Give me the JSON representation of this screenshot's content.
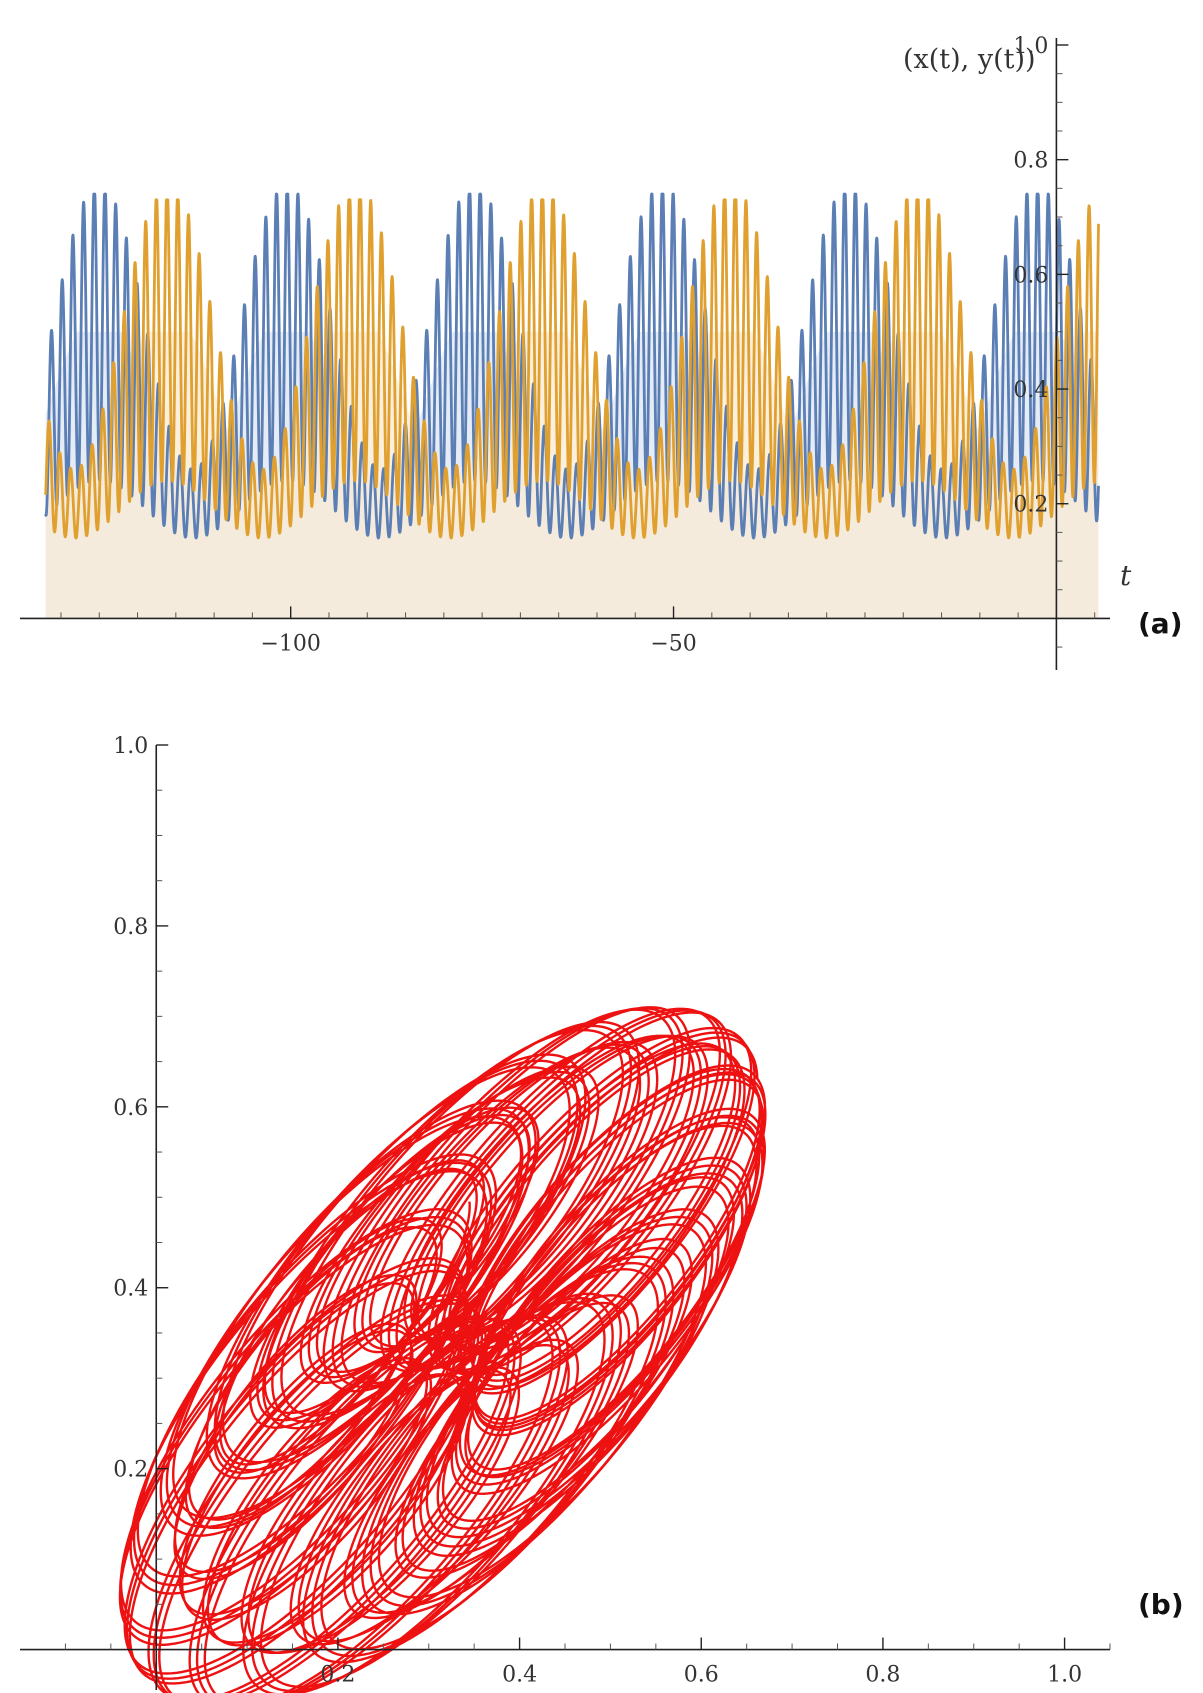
{
  "chart_data": [
    {
      "type": "line",
      "panel_label": "(a)",
      "ylabel": "(x(t), y(t))",
      "xlabel": "t",
      "xlim": [
        -133,
        7
      ],
      "ylim": [
        -0.09,
        1.0
      ],
      "xticks": [
        {
          "value": -100,
          "label": "−100"
        },
        {
          "value": -50,
          "label": "−50"
        }
      ],
      "yticks": [
        {
          "value": 0.2,
          "label": "0.2"
        },
        {
          "value": 0.4,
          "label": "0.4"
        },
        {
          "value": 0.6,
          "label": "0.6"
        },
        {
          "value": 0.8,
          "label": "0.8"
        },
        {
          "value": 1.0,
          "label": "1.0"
        }
      ],
      "filled_to_axis": true,
      "grid": false,
      "series": [
        {
          "color": "#5b7fb5",
          "fill": "#dce5f3",
          "slow_period": 24.5,
          "fast_period": 1.4,
          "peak_t": [
            -125,
            -101,
            -77,
            -52,
            -27,
            -3
          ],
          "mean_range": [
            0.2,
            0.5
          ],
          "oscillation_range": [
            -0.06,
            0.74
          ]
        },
        {
          "color": "#e0a030",
          "fill": "#faebd3",
          "slow_period": 24.5,
          "fast_period": 1.4,
          "peak_t": [
            -116,
            -92,
            -67,
            -43,
            -18,
            6
          ],
          "mean_range": [
            0.2,
            0.5
          ],
          "oscillation_range": [
            -0.05,
            0.73
          ]
        }
      ]
    },
    {
      "type": "line",
      "panel_label": "(b)",
      "xlim": [
        -0.15,
        1.05
      ],
      "ylim": [
        -0.1,
        1.0
      ],
      "xticks": [
        {
          "value": 0.2,
          "label": "0.2"
        },
        {
          "value": 0.4,
          "label": "0.4"
        },
        {
          "value": 0.6,
          "label": "0.6"
        },
        {
          "value": 0.8,
          "label": "0.8"
        },
        {
          "value": 1.0,
          "label": "1.0"
        }
      ],
      "yticks": [
        {
          "value": 0.2,
          "label": "0.2"
        },
        {
          "value": 0.4,
          "label": "0.4"
        },
        {
          "value": 0.6,
          "label": "0.6"
        },
        {
          "value": 0.8,
          "label": "0.8"
        },
        {
          "value": 1.0,
          "label": "1.0"
        }
      ],
      "series": [
        {
          "color": "#ee1111",
          "curve": "phase portrait (x(t), y(t))",
          "x_range": [
            -0.05,
            0.73
          ],
          "y_range": [
            -0.06,
            0.72
          ]
        }
      ]
    }
  ]
}
